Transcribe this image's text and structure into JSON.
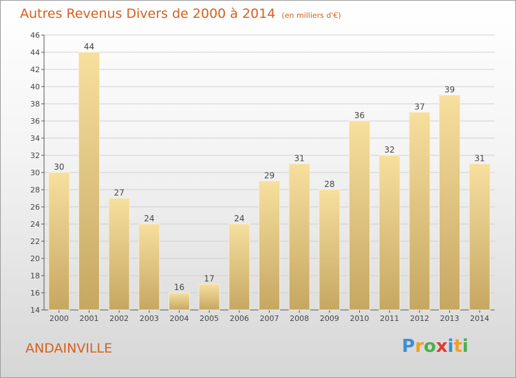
{
  "title": "Autres Revenus Divers de 2000 à 2014",
  "subtitle": "(en milliers d'€)",
  "commune": "ANDAINVILLE",
  "logo": {
    "text": "Proxiti",
    "letters": [
      {
        "ch": "P",
        "color": "#3b8fd6"
      },
      {
        "ch": "r",
        "color": "#f0a020"
      },
      {
        "ch": "o",
        "color": "#4caf50"
      },
      {
        "ch": "x",
        "color": "#e53935"
      },
      {
        "ch": "i",
        "color": "#3b8fd6"
      },
      {
        "ch": "t",
        "color": "#f0a020"
      },
      {
        "ch": "i",
        "color": "#4caf50"
      }
    ]
  },
  "colors": {
    "title": "#d5601e",
    "bar_top": "#f7df9e",
    "bar_bottom": "#c6a762",
    "grid": "#d0d0d0"
  },
  "chart_data": {
    "type": "bar",
    "categories": [
      "2000",
      "2001",
      "2002",
      "2003",
      "2004",
      "2005",
      "2006",
      "2007",
      "2008",
      "2009",
      "2010",
      "2011",
      "2012",
      "2013",
      "2014"
    ],
    "values": [
      30,
      44,
      27,
      24,
      16,
      17,
      24,
      29,
      31,
      28,
      36,
      32,
      37,
      39,
      31
    ],
    "ylim": [
      14,
      46
    ],
    "yticks": [
      14,
      16,
      18,
      20,
      22,
      24,
      26,
      28,
      30,
      32,
      34,
      36,
      38,
      40,
      42,
      44,
      46
    ],
    "grid": true,
    "data_labels": true
  }
}
